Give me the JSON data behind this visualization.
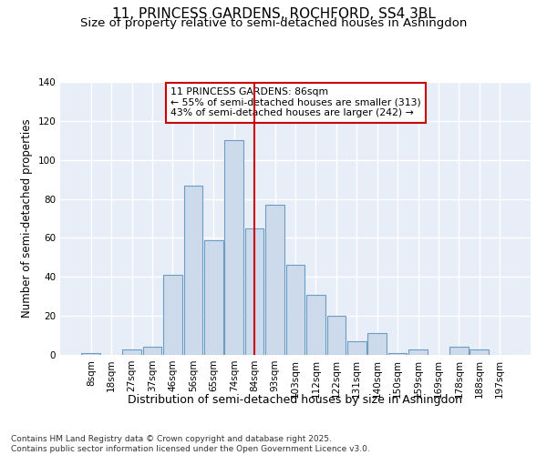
{
  "title": "11, PRINCESS GARDENS, ROCHFORD, SS4 3BL",
  "subtitle": "Size of property relative to semi-detached houses in Ashingdon",
  "xlabel": "Distribution of semi-detached houses by size in Ashingdon",
  "ylabel": "Number of semi-detached properties",
  "footer_line1": "Contains HM Land Registry data © Crown copyright and database right 2025.",
  "footer_line2": "Contains public sector information licensed under the Open Government Licence v3.0.",
  "categories": [
    "8sqm",
    "18sqm",
    "27sqm",
    "37sqm",
    "46sqm",
    "56sqm",
    "65sqm",
    "74sqm",
    "84sqm",
    "93sqm",
    "103sqm",
    "112sqm",
    "122sqm",
    "131sqm",
    "140sqm",
    "150sqm",
    "159sqm",
    "169sqm",
    "178sqm",
    "188sqm",
    "197sqm"
  ],
  "values": [
    1,
    0,
    3,
    4,
    41,
    87,
    59,
    110,
    65,
    77,
    46,
    31,
    20,
    7,
    11,
    1,
    3,
    0,
    4,
    3,
    0
  ],
  "bar_color": "#cddaeb",
  "bar_edge_color": "#6b9dc2",
  "vline_x": 8,
  "vline_color": "#cc0000",
  "annotation_title": "11 PRINCESS GARDENS: 86sqm",
  "annotation_line1": "← 55% of semi-detached houses are smaller (313)",
  "annotation_line2": "43% of semi-detached houses are larger (242) →",
  "annotation_box_color": "#ffffff",
  "annotation_box_edge": "#cc0000",
  "ylim": [
    0,
    140
  ],
  "yticks": [
    0,
    20,
    40,
    60,
    80,
    100,
    120,
    140
  ],
  "bg_color": "#e8eef8",
  "fig_bg_color": "#ffffff",
  "title_fontsize": 11,
  "subtitle_fontsize": 9.5,
  "tick_fontsize": 7.5,
  "ylabel_fontsize": 8.5,
  "xlabel_fontsize": 9,
  "footer_fontsize": 6.5
}
